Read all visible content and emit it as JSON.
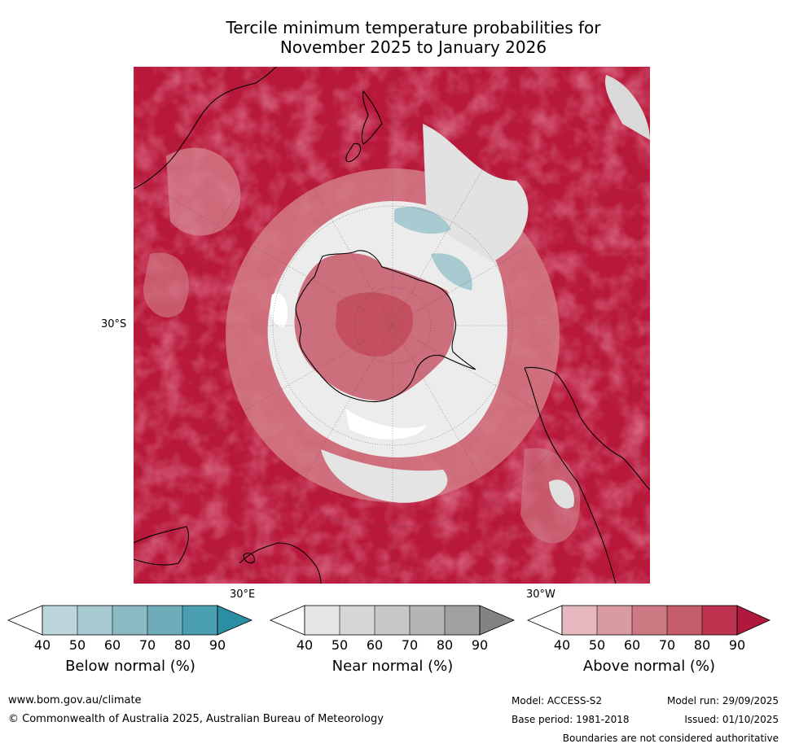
{
  "title_line1": "Tercile minimum temperature probabilities for",
  "title_line2": "November 2025 to January 2026",
  "map": {
    "projection": "south-polar-stereographic",
    "labels": {
      "lat_30s": "30°S",
      "lon_30e": "30°E",
      "lon_30w": "30°W"
    },
    "colors": {
      "above_strong": "#b8193b",
      "above_mid": "#c5394f",
      "near_light": "#e6e6e6",
      "below_light": "#a8cbd2",
      "white": "#ffffff",
      "land": "#000000"
    }
  },
  "colorbars": [
    {
      "label": "Below normal (%)",
      "ticks": [
        "40",
        "50",
        "60",
        "70",
        "80",
        "90"
      ],
      "colors": [
        "#bdd6dc",
        "#a6c8cf",
        "#8cbac3",
        "#6dacb8",
        "#4aa0b0",
        "#2b8fa3"
      ]
    },
    {
      "label": "Near normal (%)",
      "ticks": [
        "40",
        "50",
        "60",
        "70",
        "80",
        "90"
      ],
      "colors": [
        "#e6e6e6",
        "#d6d6d6",
        "#c8c8c8",
        "#b5b5b5",
        "#a1a1a1",
        "#828282"
      ]
    },
    {
      "label": "Above normal (%)",
      "ticks": [
        "40",
        "50",
        "60",
        "70",
        "80",
        "90"
      ],
      "colors": [
        "#e4b8be",
        "#d99aa2",
        "#cd7983",
        "#c45c6a",
        "#bd3350",
        "#b0193d"
      ]
    }
  ],
  "footer": {
    "url": "www.bom.gov.au/climate",
    "copyright": "© Commonwealth of Australia 2025, Australian Bureau of Meteorology",
    "model": "Model: ACCESS-S2",
    "base_period": "Base period: 1981-2018",
    "model_run": "Model run: 29/09/2025",
    "issued": "Issued: 01/10/2025",
    "disclaimer": "Boundaries are not considered authoritative"
  }
}
